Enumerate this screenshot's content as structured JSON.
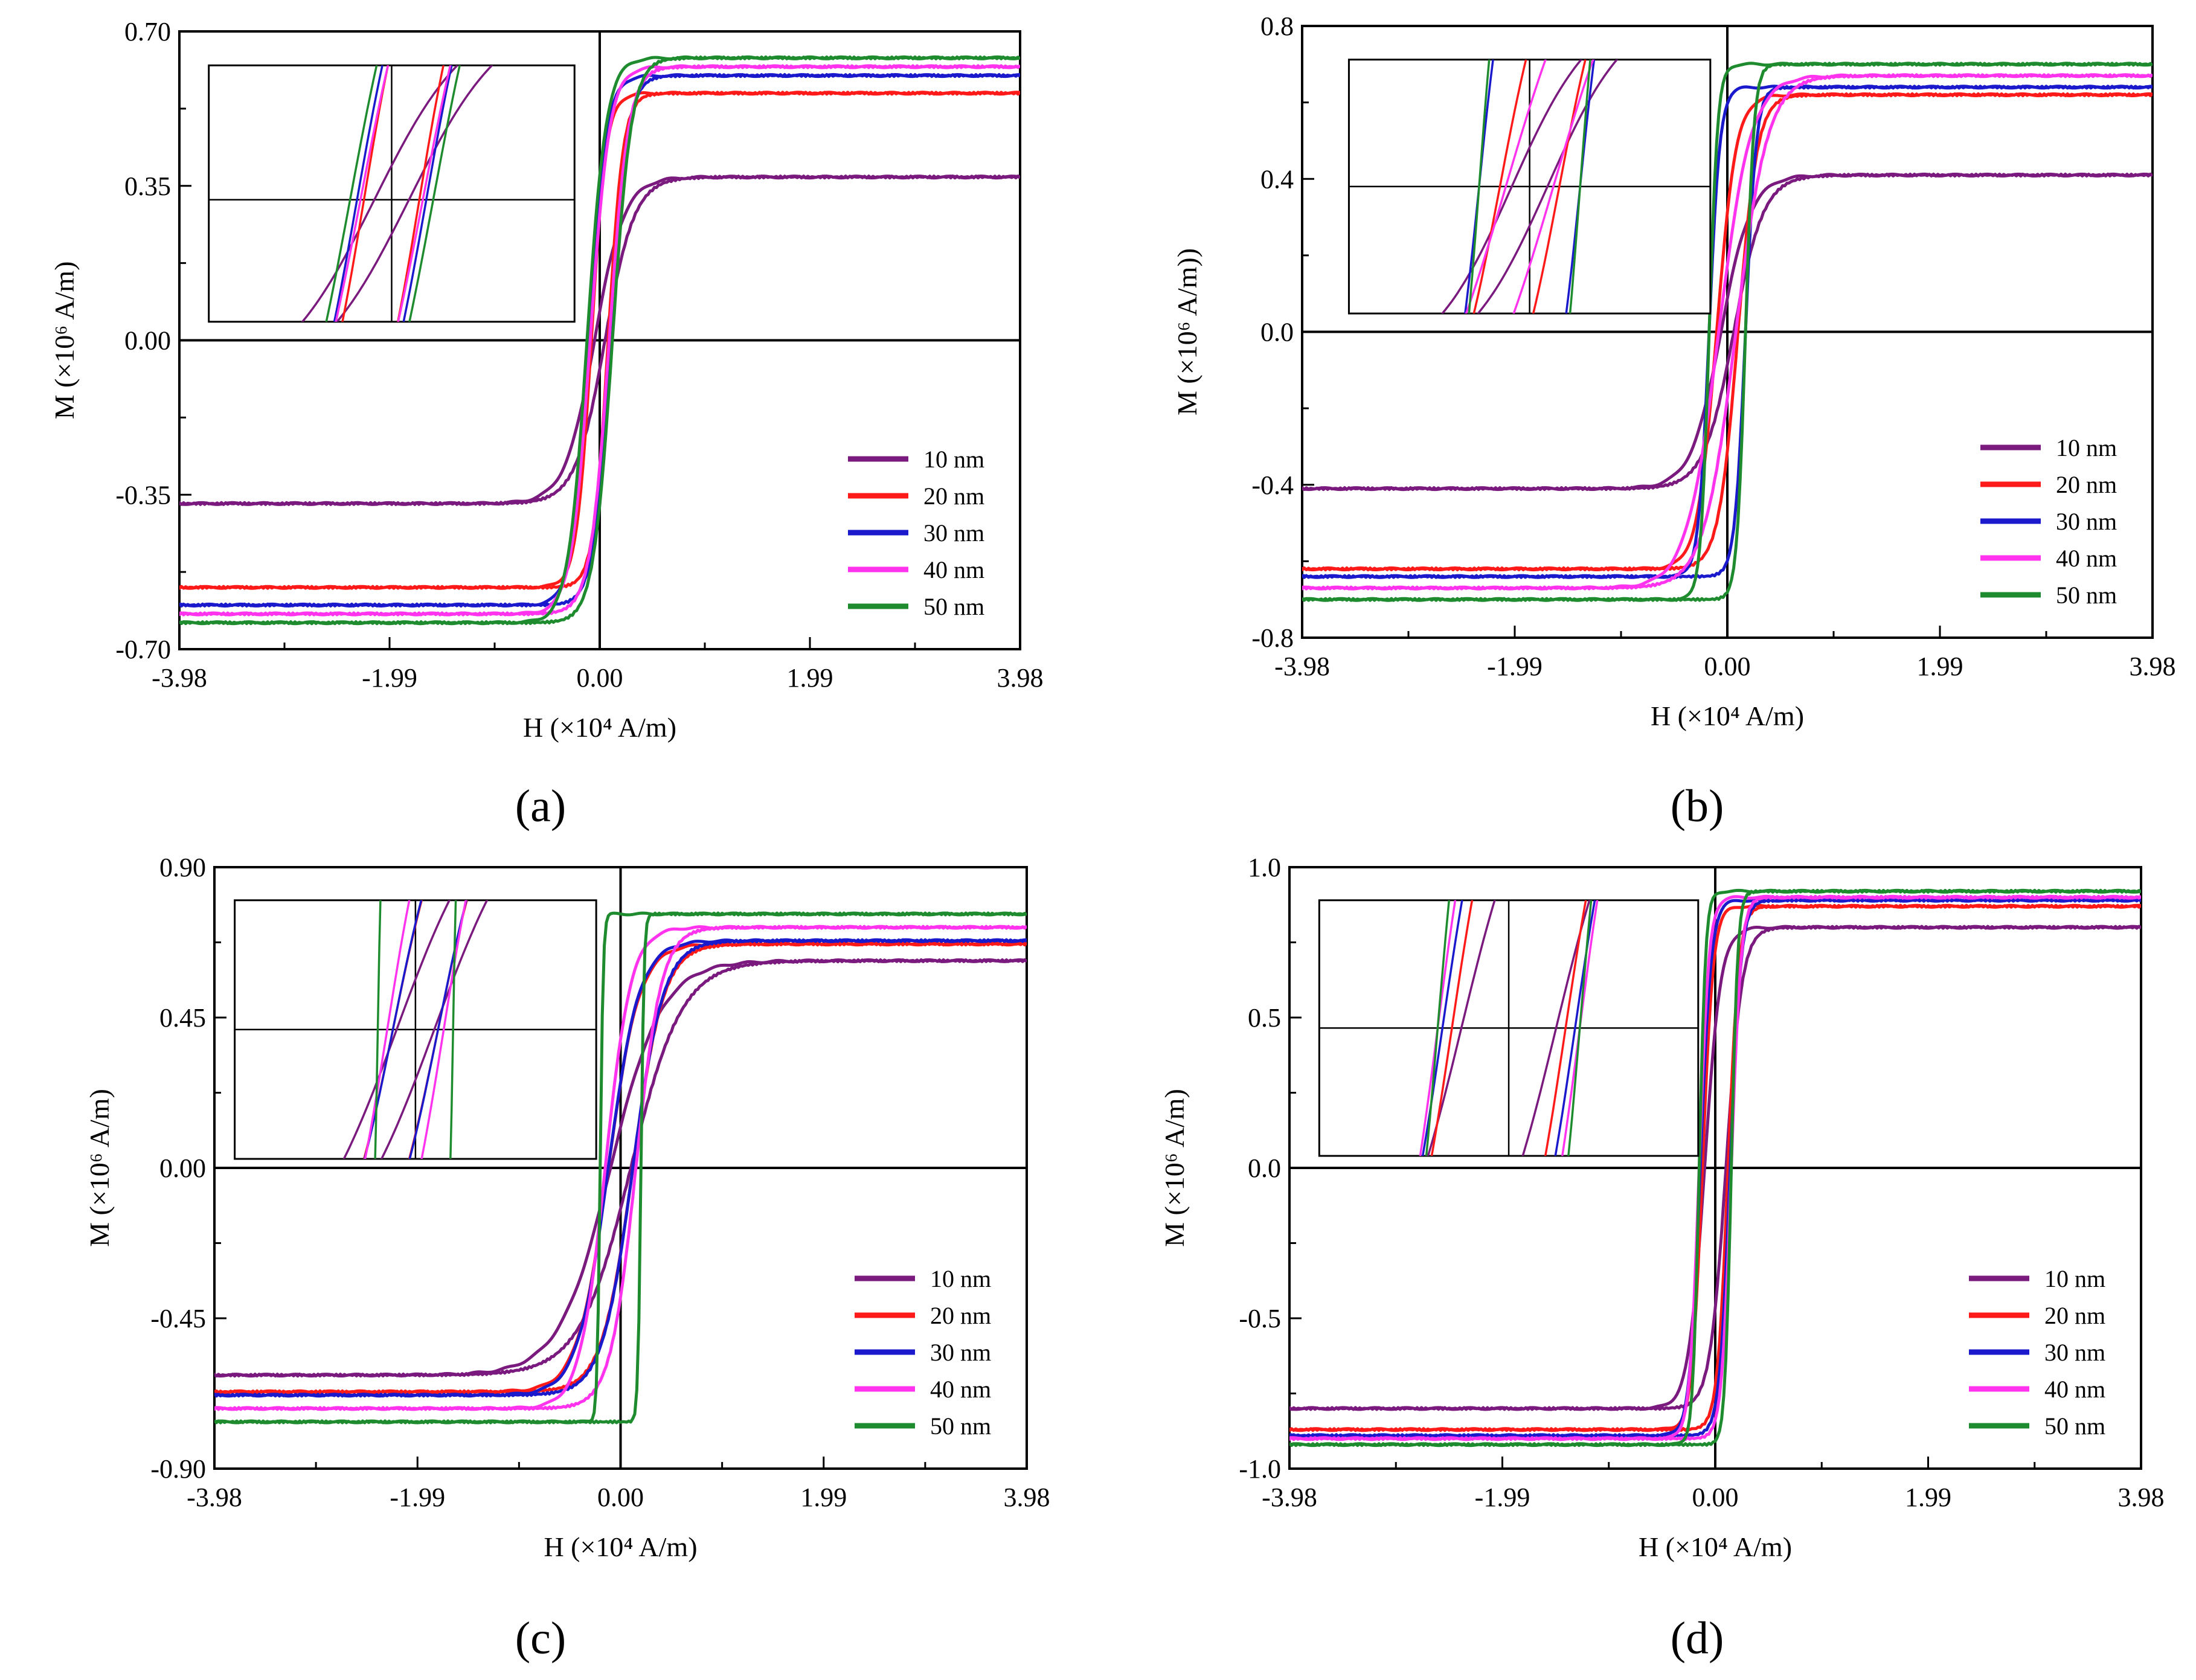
{
  "figure": {
    "panel_labels": [
      "(a)",
      "(b)",
      "(c)",
      "(d)"
    ]
  },
  "chart_data": [
    {
      "type": "line",
      "panel": "(a)",
      "xlabel": "H (×10⁴ A/m)",
      "ylabel": "M (×10⁶ A/m)",
      "xlim": [
        -3.98,
        3.98
      ],
      "ylim": [
        -0.7,
        0.7
      ],
      "xticks": [
        -3.98,
        -1.99,
        0.0,
        1.99,
        3.98
      ],
      "xtick_labels": [
        "-3.98",
        "-1.99",
        "0.00",
        "1.99",
        "3.98"
      ],
      "yticks": [
        -0.7,
        -0.35,
        0.0,
        0.35,
        0.7
      ],
      "ytick_labels": [
        "-0.70",
        "-0.35",
        "0.00",
        "0.35",
        "0.70"
      ],
      "legend_position": "bottom-right",
      "inset": "zoomed view of loops near origin",
      "series": [
        {
          "name": "10 nm",
          "color": "#7b1a7e",
          "ms": 0.37,
          "hc": 0.05,
          "w": 0.28
        },
        {
          "name": "20 nm",
          "color": "#ff1a1a",
          "ms": 0.56,
          "hc": 0.08,
          "w": 0.14
        },
        {
          "name": "30 nm",
          "color": "#1a1acc",
          "ms": 0.6,
          "hc": 0.1,
          "w": 0.16
        },
        {
          "name": "40 nm",
          "color": "#ff33ee",
          "ms": 0.62,
          "hc": 0.09,
          "w": 0.18
        },
        {
          "name": "50 nm",
          "color": "#1e8c2e",
          "ms": 0.64,
          "hc": 0.12,
          "w": 0.18
        }
      ]
    },
    {
      "type": "line",
      "panel": "(b)",
      "xlabel": "H (×10⁴ A/m)",
      "ylabel": "M (×10⁶ A/m))",
      "xlim": [
        -3.98,
        3.98
      ],
      "ylim": [
        -0.8,
        0.8
      ],
      "xticks": [
        -3.98,
        -1.99,
        0.0,
        1.99,
        3.98
      ],
      "xtick_labels": [
        "-3.98",
        "-1.99",
        "0.00",
        "1.99",
        "3.98"
      ],
      "yticks": [
        -0.8,
        -0.4,
        0.0,
        0.4,
        0.8
      ],
      "ytick_labels": [
        "-0.8",
        "-0.4",
        "0.0",
        "0.4",
        "0.8"
      ],
      "legend_position": "bottom-right",
      "inset": "zoomed view of loops near origin",
      "series": [
        {
          "name": "10 nm",
          "color": "#7b1a7e",
          "ms": 0.41,
          "hc": 0.06,
          "w": 0.28
        },
        {
          "name": "20 nm",
          "color": "#ff1a1a",
          "ms": 0.62,
          "hc": 0.1,
          "w": 0.18
        },
        {
          "name": "30 nm",
          "color": "#1a1acc",
          "ms": 0.64,
          "hc": 0.17,
          "w": 0.1
        },
        {
          "name": "40 nm",
          "color": "#ff33ee",
          "ms": 0.67,
          "hc": 0.08,
          "w": 0.3
        },
        {
          "name": "50 nm",
          "color": "#1e8c2e",
          "ms": 0.7,
          "hc": 0.17,
          "w": 0.08
        }
      ]
    },
    {
      "type": "line",
      "panel": "(c)",
      "xlabel": "H (×10⁴ A/m)",
      "ylabel": "M (×10⁶ A/m)",
      "xlim": [
        -3.98,
        3.98
      ],
      "ylim": [
        -0.9,
        0.9
      ],
      "xticks": [
        -3.98,
        -1.99,
        0.0,
        1.99,
        3.98
      ],
      "xtick_labels": [
        "-3.98",
        "-1.99",
        "0.00",
        "1.99",
        "3.98"
      ],
      "yticks": [
        -0.9,
        -0.45,
        0.0,
        0.45,
        0.9
      ],
      "ytick_labels": [
        "-0.90",
        "-0.45",
        "0.00",
        "0.45",
        "0.90"
      ],
      "legend_position": "bottom-right",
      "inset": "zoomed view of loops near origin",
      "series": [
        {
          "name": "10 nm",
          "color": "#7b1a7e",
          "ms": 0.62,
          "hc": 0.1,
          "w": 0.5
        },
        {
          "name": "20 nm",
          "color": "#ff1a1a",
          "ms": 0.67,
          "hc": 0.12,
          "w": 0.3
        },
        {
          "name": "30 nm",
          "color": "#1a1acc",
          "ms": 0.68,
          "hc": 0.12,
          "w": 0.3
        },
        {
          "name": "40 nm",
          "color": "#ff33ee",
          "ms": 0.72,
          "hc": 0.15,
          "w": 0.25
        },
        {
          "name": "50 nm",
          "color": "#1e8c2e",
          "ms": 0.76,
          "hc": 0.2,
          "w": 0.03
        }
      ]
    },
    {
      "type": "line",
      "panel": "(d)",
      "xlabel": "H (×10⁴ A/m)",
      "ylabel": "M (×10⁶ A/m)",
      "xlim": [
        -3.98,
        3.98
      ],
      "ylim": [
        -1.0,
        1.0
      ],
      "xticks": [
        -3.98,
        -1.99,
        0.0,
        1.99,
        3.98
      ],
      "xtick_labels": [
        "-3.98",
        "-1.99",
        "0.00",
        "1.99",
        "3.98"
      ],
      "yticks": [
        -1.0,
        -0.5,
        0.0,
        0.5,
        1.0
      ],
      "ytick_labels": [
        "-1.0",
        "-0.5",
        "0.0",
        "0.5",
        "1.0"
      ],
      "legend_position": "bottom-right",
      "inset": "zoomed view of loops near origin",
      "series": [
        {
          "name": "10 nm",
          "color": "#7b1a7e",
          "ms": 0.8,
          "hc": 0.1,
          "w": 0.15
        },
        {
          "name": "20 nm",
          "color": "#ff1a1a",
          "ms": 0.87,
          "hc": 0.12,
          "w": 0.1
        },
        {
          "name": "30 nm",
          "color": "#1a1acc",
          "ms": 0.89,
          "hc": 0.14,
          "w": 0.1
        },
        {
          "name": "40 nm",
          "color": "#ff33ee",
          "ms": 0.9,
          "hc": 0.15,
          "w": 0.09
        },
        {
          "name": "50 nm",
          "color": "#1e8c2e",
          "ms": 0.92,
          "hc": 0.15,
          "w": 0.06
        }
      ]
    }
  ]
}
